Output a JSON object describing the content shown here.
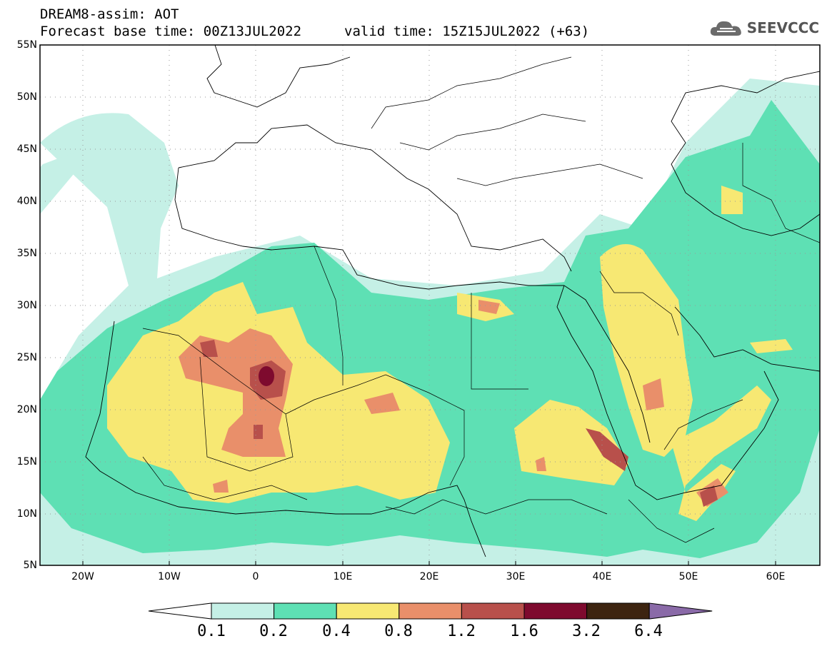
{
  "header": {
    "title": "DREAM8-assim: AOT",
    "base_time": "Forecast base time: 00Z13JUL2022",
    "valid_time": "valid time: 15Z15JUL2022 (+63)"
  },
  "logo": {
    "text": "SEEVCCC",
    "icon": "cloud-icon"
  },
  "map": {
    "lat_labels": [
      "55N",
      "50N",
      "45N",
      "40N",
      "35N",
      "30N",
      "25N",
      "20N",
      "15N",
      "10N",
      "5N"
    ],
    "lon_labels": [
      "20W",
      "10W",
      "0",
      "10E",
      "20E",
      "30E",
      "40E",
      "50E",
      "60E"
    ],
    "lon_range": [
      -25,
      65
    ],
    "lat_range": [
      5,
      55
    ]
  },
  "colorbar": {
    "levels": [
      "0.1",
      "0.2",
      "0.4",
      "0.8",
      "1.2",
      "1.6",
      "3.2",
      "6.4"
    ],
    "colors": [
      "#ffffff",
      "#c5f0e6",
      "#5ee0b4",
      "#f7e873",
      "#e98f6a",
      "#b8504b",
      "#7e0a2e",
      "#3d2410",
      "#8a6aa8"
    ]
  }
}
